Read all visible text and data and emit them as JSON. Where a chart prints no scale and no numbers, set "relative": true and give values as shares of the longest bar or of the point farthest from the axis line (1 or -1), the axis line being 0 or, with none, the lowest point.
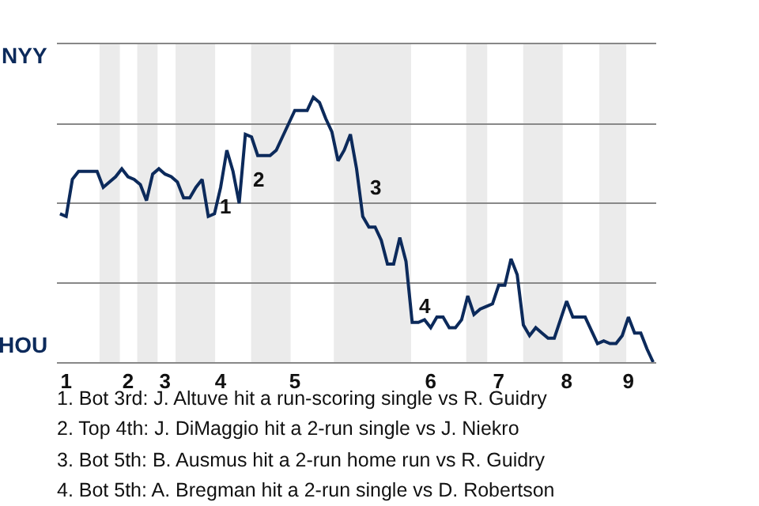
{
  "chart_data": {
    "type": "line",
    "relative": true,
    "categories": [
      null,
      "1",
      null,
      null,
      null,
      null,
      null,
      null,
      null,
      null,
      null,
      "2",
      null,
      null,
      null,
      null,
      null,
      "3",
      null,
      null,
      null,
      null,
      null,
      null,
      null,
      null,
      "4",
      null,
      null,
      null,
      null,
      null,
      null,
      null,
      null,
      null,
      null,
      null,
      "5",
      null,
      null,
      null,
      null,
      null,
      null,
      null,
      null,
      null,
      null,
      null,
      null,
      null,
      null,
      null,
      null,
      null,
      null,
      null,
      null,
      null,
      "6",
      null,
      null,
      null,
      null,
      null,
      null,
      null,
      null,
      null,
      null,
      "7",
      null,
      null,
      null,
      null,
      null,
      null,
      null,
      null,
      null,
      null,
      "8",
      null,
      null,
      null,
      null,
      null,
      null,
      null,
      null,
      null,
      "9",
      null,
      null,
      null,
      null
    ],
    "series": [
      {
        "color": "#0c2a5b",
        "values": [
          0.56,
          0.55,
          0.69,
          0.72,
          0.72,
          0.72,
          0.72,
          0.66,
          0.68,
          0.7,
          0.73,
          0.7,
          0.69,
          0.67,
          0.61,
          0.71,
          0.73,
          0.71,
          0.7,
          0.68,
          0.62,
          0.62,
          0.66,
          0.69,
          0.55,
          0.56,
          0.66,
          0.8,
          0.72,
          0.6,
          0.86,
          0.85,
          0.78,
          0.78,
          0.78,
          0.8,
          0.85,
          0.9,
          0.95,
          0.95,
          0.95,
          1,
          0.98,
          0.92,
          0.87,
          0.76,
          0.8,
          0.86,
          0.73,
          0.55,
          0.51,
          0.51,
          0.46,
          0.37,
          0.37,
          0.47,
          0.38,
          0.15,
          0.15,
          0.16,
          0.13,
          0.17,
          0.17,
          0.13,
          0.13,
          0.16,
          0.25,
          0.18,
          0.2,
          0.21,
          0.22,
          0.29,
          0.29,
          0.39,
          0.33,
          0.14,
          0.1,
          0.13,
          0.11,
          0.09,
          0.09,
          0.16,
          0.23,
          0.17,
          0.17,
          0.17,
          0.12,
          0.07,
          0.08,
          0.07,
          0.07,
          0.1,
          0.17,
          0.11,
          0.11,
          0.05,
          0
        ],
        "name": null
      }
    ],
    "grid": "y",
    "marker": "none",
    "line_style": "solid",
    "annotations": [
      "1",
      "2",
      "3",
      "4",
      "NYY",
      "HOU",
      "1. Bot 3rd: J. Altuve hit a run-scoring single vs R. Guidry",
      "2. Top 4th: J. DiMaggio hit a 2-run single vs J. Niekro",
      "3. Bot 5th: B. Ausmus hit a 2-run home run vs R. Guidry",
      "4. Bot 5th: A. Bregman hit a 2-run single vs D. Robertson"
    ]
  }
}
